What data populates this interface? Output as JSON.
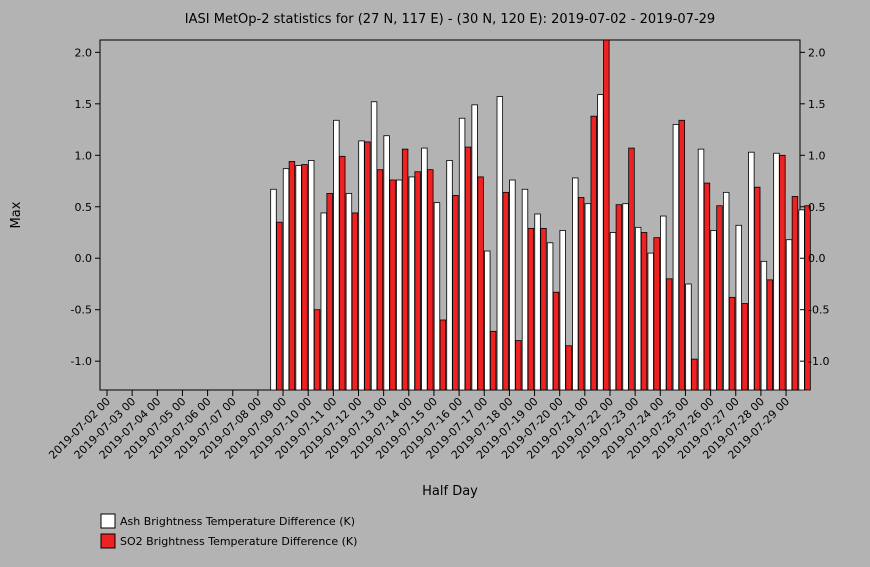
{
  "chart_data": {
    "type": "bar",
    "title": "IASI MetOp-2 statistics for (27 N, 117 E) - (30 N, 120 E): 2019-07-02 - 2019-07-29",
    "xlabel": "Half Day",
    "ylabel": "Max",
    "ylim": [
      -1.28,
      2.12
    ],
    "yticks": [
      2.0,
      1.5,
      1.0,
      0.5,
      0.0,
      -0.5,
      -1.0
    ],
    "ytick_labels": [
      "2.0",
      "1.5",
      "1.0",
      "0.5",
      "0.0",
      "-0.5",
      "-1.0"
    ],
    "xtick_labels": [
      "2019-07-02 00",
      "2019-07-03 00",
      "2019-07-04 00",
      "2019-07-05 00",
      "2019-07-06 00",
      "2019-07-07 00",
      "2019-07-08 00",
      "2019-07-09 00",
      "2019-07-10 00",
      "2019-07-11 00",
      "2019-07-12 00",
      "2019-07-13 00",
      "2019-07-14 00",
      "2019-07-15 00",
      "2019-07-16 00",
      "2019-07-17 00",
      "2019-07-18 00",
      "2019-07-19 00",
      "2019-07-20 00",
      "2019-07-21 00",
      "2019-07-22 00",
      "2019-07-23 00",
      "2019-07-24 00",
      "2019-07-25 00",
      "2019-07-26 00",
      "2019-07-27 00",
      "2019-07-28 00",
      "2019-07-29 00"
    ],
    "categories": [
      "2019-07-02 00",
      "2019-07-02 12",
      "2019-07-03 00",
      "2019-07-03 12",
      "2019-07-04 00",
      "2019-07-04 12",
      "2019-07-05 00",
      "2019-07-05 12",
      "2019-07-06 00",
      "2019-07-06 12",
      "2019-07-07 00",
      "2019-07-07 12",
      "2019-07-08 00",
      "2019-07-08 12",
      "2019-07-09 00",
      "2019-07-09 12",
      "2019-07-10 00",
      "2019-07-10 12",
      "2019-07-11 00",
      "2019-07-11 12",
      "2019-07-12 00",
      "2019-07-12 12",
      "2019-07-13 00",
      "2019-07-13 12",
      "2019-07-14 00",
      "2019-07-14 12",
      "2019-07-15 00",
      "2019-07-15 12",
      "2019-07-16 00",
      "2019-07-16 12",
      "2019-07-17 00",
      "2019-07-17 12",
      "2019-07-18 00",
      "2019-07-18 12",
      "2019-07-19 00",
      "2019-07-19 12",
      "2019-07-20 00",
      "2019-07-20 12",
      "2019-07-21 00",
      "2019-07-21 12",
      "2019-07-22 00",
      "2019-07-22 12",
      "2019-07-23 00",
      "2019-07-23 12",
      "2019-07-24 00",
      "2019-07-24 12",
      "2019-07-25 00",
      "2019-07-25 12",
      "2019-07-26 00",
      "2019-07-26 12",
      "2019-07-27 00",
      "2019-07-27 12",
      "2019-07-28 00",
      "2019-07-28 12",
      "2019-07-29 00",
      "2019-07-29 12"
    ],
    "series": [
      {
        "name": "Ash Brightness Temperature Difference (K)",
        "color": "#ffffff",
        "values": [
          null,
          null,
          null,
          null,
          null,
          null,
          null,
          null,
          null,
          null,
          null,
          null,
          null,
          0.67,
          0.87,
          0.9,
          0.95,
          0.44,
          1.34,
          0.63,
          1.14,
          1.52,
          1.19,
          0.76,
          0.79,
          1.07,
          0.54,
          0.95,
          1.36,
          1.49,
          0.07,
          1.57,
          0.76,
          0.67,
          0.43,
          0.15,
          0.27,
          0.78,
          0.53,
          1.59,
          0.25,
          0.53,
          0.3,
          0.05,
          0.41,
          1.3,
          -0.25,
          1.06,
          0.27,
          0.64,
          0.32,
          1.03,
          -0.03,
          1.02,
          0.18,
          0.47
        ]
      },
      {
        "name": "SO2 Brightness Temperature Difference (K)",
        "color": "#ee2222",
        "values": [
          null,
          null,
          null,
          null,
          null,
          null,
          null,
          null,
          null,
          null,
          null,
          null,
          null,
          0.35,
          0.94,
          0.91,
          -0.5,
          0.63,
          0.99,
          0.44,
          1.13,
          0.86,
          0.76,
          1.06,
          0.84,
          0.86,
          -0.6,
          0.61,
          1.08,
          0.79,
          -0.71,
          0.64,
          -0.8,
          0.29,
          0.29,
          -0.33,
          -0.85,
          0.59,
          1.38,
          2.12,
          0.52,
          1.07,
          0.25,
          0.2,
          -0.2,
          1.34,
          -0.98,
          0.73,
          0.51,
          -0.38,
          -0.44,
          0.69,
          -0.21,
          1.0,
          0.6,
          0.51
        ]
      }
    ],
    "legend_position": "bottom-left",
    "grid": false
  }
}
